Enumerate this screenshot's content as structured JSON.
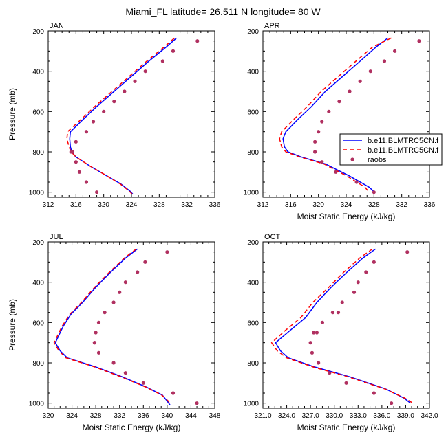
{
  "figure_title": "Miami_FL  latitude= 26.511 N longitude= 80 W",
  "legend": {
    "entries": [
      {
        "label": "b.e11.BLMTRC5CN.f",
        "color": "#0000ff",
        "style": "solid"
      },
      {
        "label": "b.e11.BLMTRC5CN.f",
        "color": "#ff0000",
        "style": "dashed"
      },
      {
        "label": "raobs",
        "color": "#b03060",
        "style": "dot"
      }
    ]
  },
  "chart_data": [
    {
      "type": "line",
      "panel_label": "JAN",
      "xlabel": "",
      "ylabel": "Pressure (mb)",
      "xlim": [
        312,
        336
      ],
      "ylim": [
        1025,
        200
      ],
      "y_reversed": true,
      "xticks": [
        "312",
        "316",
        "320",
        "324",
        "328",
        "332",
        "336"
      ],
      "xtick_values": [
        312,
        316,
        320,
        324,
        328,
        332,
        336
      ],
      "yticks": [
        "200",
        "400",
        "600",
        "800",
        "1000"
      ],
      "ytick_values": [
        200,
        400,
        600,
        800,
        1000
      ],
      "series": [
        {
          "color": "#0000ff",
          "dash": "",
          "x": [
            330.5,
            329,
            326.5,
            324,
            321.5,
            319,
            317,
            315.2,
            315.1,
            315.2,
            315.4,
            316,
            318,
            320.5,
            322.5,
            323.8,
            324.2
          ],
          "y": [
            235,
            280,
            350,
            425,
            500,
            575,
            640,
            700,
            735,
            775,
            800,
            825,
            870,
            920,
            960,
            995,
            1010
          ]
        },
        {
          "color": "#ff0000",
          "dash": "6,4",
          "x": [
            330.2,
            328.7,
            326.2,
            323.7,
            321.2,
            318.7,
            316.7,
            314.8,
            314.7,
            315.0,
            315.3,
            316,
            318,
            320.5,
            322.4,
            323.7,
            324.1
          ],
          "y": [
            235,
            280,
            350,
            425,
            500,
            575,
            640,
            700,
            735,
            775,
            800,
            825,
            870,
            920,
            960,
            995,
            1010
          ]
        }
      ],
      "points": {
        "color": "#b03060",
        "x": [
          333.5,
          330,
          328.5,
          326,
          324.5,
          323,
          321.5,
          320,
          318.5,
          317.5,
          316,
          315.5,
          315.3,
          316,
          316.5,
          317.5,
          319
        ],
        "y": [
          250,
          300,
          350,
          400,
          450,
          500,
          550,
          600,
          650,
          700,
          750,
          800,
          800,
          850,
          900,
          950,
          1000
        ]
      }
    },
    {
      "type": "line",
      "panel_label": "APR",
      "xlabel": "Moist Static Energy (kJ/kg)",
      "ylabel": "",
      "xlim": [
        312,
        336
      ],
      "ylim": [
        1025,
        200
      ],
      "y_reversed": true,
      "xticks": [
        "312",
        "316",
        "320",
        "324",
        "328",
        "332",
        "336"
      ],
      "xtick_values": [
        312,
        316,
        320,
        324,
        328,
        332,
        336
      ],
      "yticks": [
        "200",
        "400",
        "600",
        "800",
        "1000"
      ],
      "ytick_values": [
        200,
        400,
        600,
        800,
        1000
      ],
      "series": [
        {
          "color": "#0000ff",
          "dash": "",
          "x": [
            330,
            328.3,
            326,
            323.5,
            321,
            319,
            317,
            315.3,
            314.9,
            315.1,
            315.6,
            317.5,
            321,
            324.5,
            327.3,
            328.1
          ],
          "y": [
            235,
            280,
            350,
            425,
            500,
            575,
            640,
            700,
            735,
            775,
            800,
            825,
            860,
            920,
            975,
            1000
          ]
        },
        {
          "color": "#ff0000",
          "dash": "6,4",
          "x": [
            330.5,
            327.8,
            325.4,
            322.9,
            320.4,
            318.4,
            316.4,
            314.7,
            314.4,
            314.7,
            315.3,
            317.3,
            320.8,
            324.1,
            326.7,
            327.3
          ],
          "y": [
            235,
            280,
            350,
            425,
            500,
            575,
            640,
            700,
            735,
            775,
            800,
            825,
            860,
            920,
            975,
            1000
          ]
        }
      ],
      "points": {
        "color": "#b03060",
        "x": [
          334.5,
          331,
          329.5,
          327.5,
          326,
          324.5,
          323,
          321.5,
          320.5,
          320,
          319.5,
          319.5,
          320.5,
          322.5,
          325.5,
          328
        ],
        "y": [
          250,
          300,
          350,
          400,
          450,
          500,
          550,
          600,
          650,
          700,
          750,
          800,
          850,
          900,
          950,
          1000
        ]
      }
    },
    {
      "type": "line",
      "panel_label": "JUL",
      "xlabel": "Moist Static Energy (kJ/kg)",
      "ylabel": "Pressure (mb)",
      "xlim": [
        320,
        348
      ],
      "ylim": [
        1025,
        200
      ],
      "y_reversed": true,
      "xticks": [
        "320",
        "324",
        "328",
        "332",
        "336",
        "340",
        "344",
        "348"
      ],
      "xtick_values": [
        320,
        324,
        328,
        332,
        336,
        340,
        344,
        348
      ],
      "yticks": [
        "200",
        "400",
        "600",
        "800",
        "1000"
      ],
      "ytick_values": [
        200,
        400,
        600,
        800,
        1000
      ],
      "series": [
        {
          "color": "#0000ff",
          "dash": "",
          "x": [
            335,
            333,
            330.5,
            328,
            325.8,
            323.8,
            322.5,
            321.2,
            322,
            323.2,
            328,
            332.5,
            336.5,
            339.2,
            340,
            340.5
          ],
          "y": [
            235,
            280,
            350,
            425,
            500,
            560,
            620,
            700,
            740,
            775,
            820,
            870,
            920,
            960,
            990,
            1010
          ]
        },
        {
          "color": "#ff0000",
          "dash": "6,4",
          "x": [
            334.8,
            332.8,
            330.3,
            327.8,
            325.6,
            323.6,
            322.3,
            321,
            321.8,
            323,
            327.8,
            332.3,
            336.4,
            339.1,
            340.2,
            340.6
          ],
          "y": [
            235,
            280,
            350,
            425,
            500,
            560,
            620,
            700,
            740,
            775,
            820,
            870,
            920,
            960,
            990,
            1010
          ]
        }
      ],
      "points": {
        "color": "#b03060",
        "x": [
          340,
          336.3,
          335,
          333,
          332,
          331,
          329.5,
          328.5,
          328,
          327.8,
          327.8,
          328.5,
          331,
          333,
          336,
          341,
          345
        ],
        "y": [
          250,
          300,
          350,
          400,
          450,
          500,
          550,
          600,
          650,
          700,
          700,
          750,
          800,
          850,
          900,
          950,
          1000
        ]
      }
    },
    {
      "type": "line",
      "panel_label": "OCT",
      "xlabel": "Moist Static Energy (kJ/kg)",
      "ylabel": "",
      "xlim": [
        321,
        342
      ],
      "ylim": [
        1025,
        200
      ],
      "y_reversed": true,
      "xticks": [
        "321.0",
        "324.0",
        "327.0",
        "330.0",
        "333.0",
        "336.0",
        "339.0",
        "342.0"
      ],
      "xtick_values": [
        321,
        324,
        327,
        330,
        333,
        336,
        339,
        342
      ],
      "yticks": [
        "200",
        "400",
        "600",
        "800",
        "1000"
      ],
      "ytick_values": [
        200,
        400,
        600,
        800,
        1000
      ],
      "series": [
        {
          "color": "#0000ff",
          "dash": "",
          "x": [
            335.2,
            333.6,
            331.6,
            329.6,
            327.8,
            326.4,
            324.4,
            322.6,
            323.2,
            324.2,
            327.5,
            332,
            336.5,
            338.8,
            339.6
          ],
          "y": [
            235,
            280,
            350,
            425,
            500,
            575,
            640,
            700,
            740,
            775,
            820,
            870,
            930,
            975,
            1000
          ]
        },
        {
          "color": "#ff0000",
          "dash": "6,4",
          "x": [
            334.8,
            333.2,
            331.2,
            329.3,
            327.3,
            325.8,
            323.8,
            322.1,
            322.8,
            324,
            327.3,
            331.8,
            336.4,
            338.9,
            339.9
          ],
          "y": [
            235,
            280,
            350,
            425,
            500,
            575,
            640,
            700,
            740,
            775,
            820,
            870,
            930,
            975,
            1000
          ]
        }
      ],
      "points": {
        "color": "#b03060",
        "x": [
          339.2,
          335,
          334,
          333,
          332.5,
          331,
          330.5,
          329.8,
          328.5,
          327.8,
          327.4,
          327,
          327.2,
          328,
          329.4,
          331.5,
          335,
          337.2
        ],
        "y": [
          250,
          300,
          350,
          400,
          450,
          500,
          550,
          550,
          600,
          650,
          650,
          700,
          750,
          800,
          850,
          900,
          950,
          1000
        ]
      }
    }
  ]
}
